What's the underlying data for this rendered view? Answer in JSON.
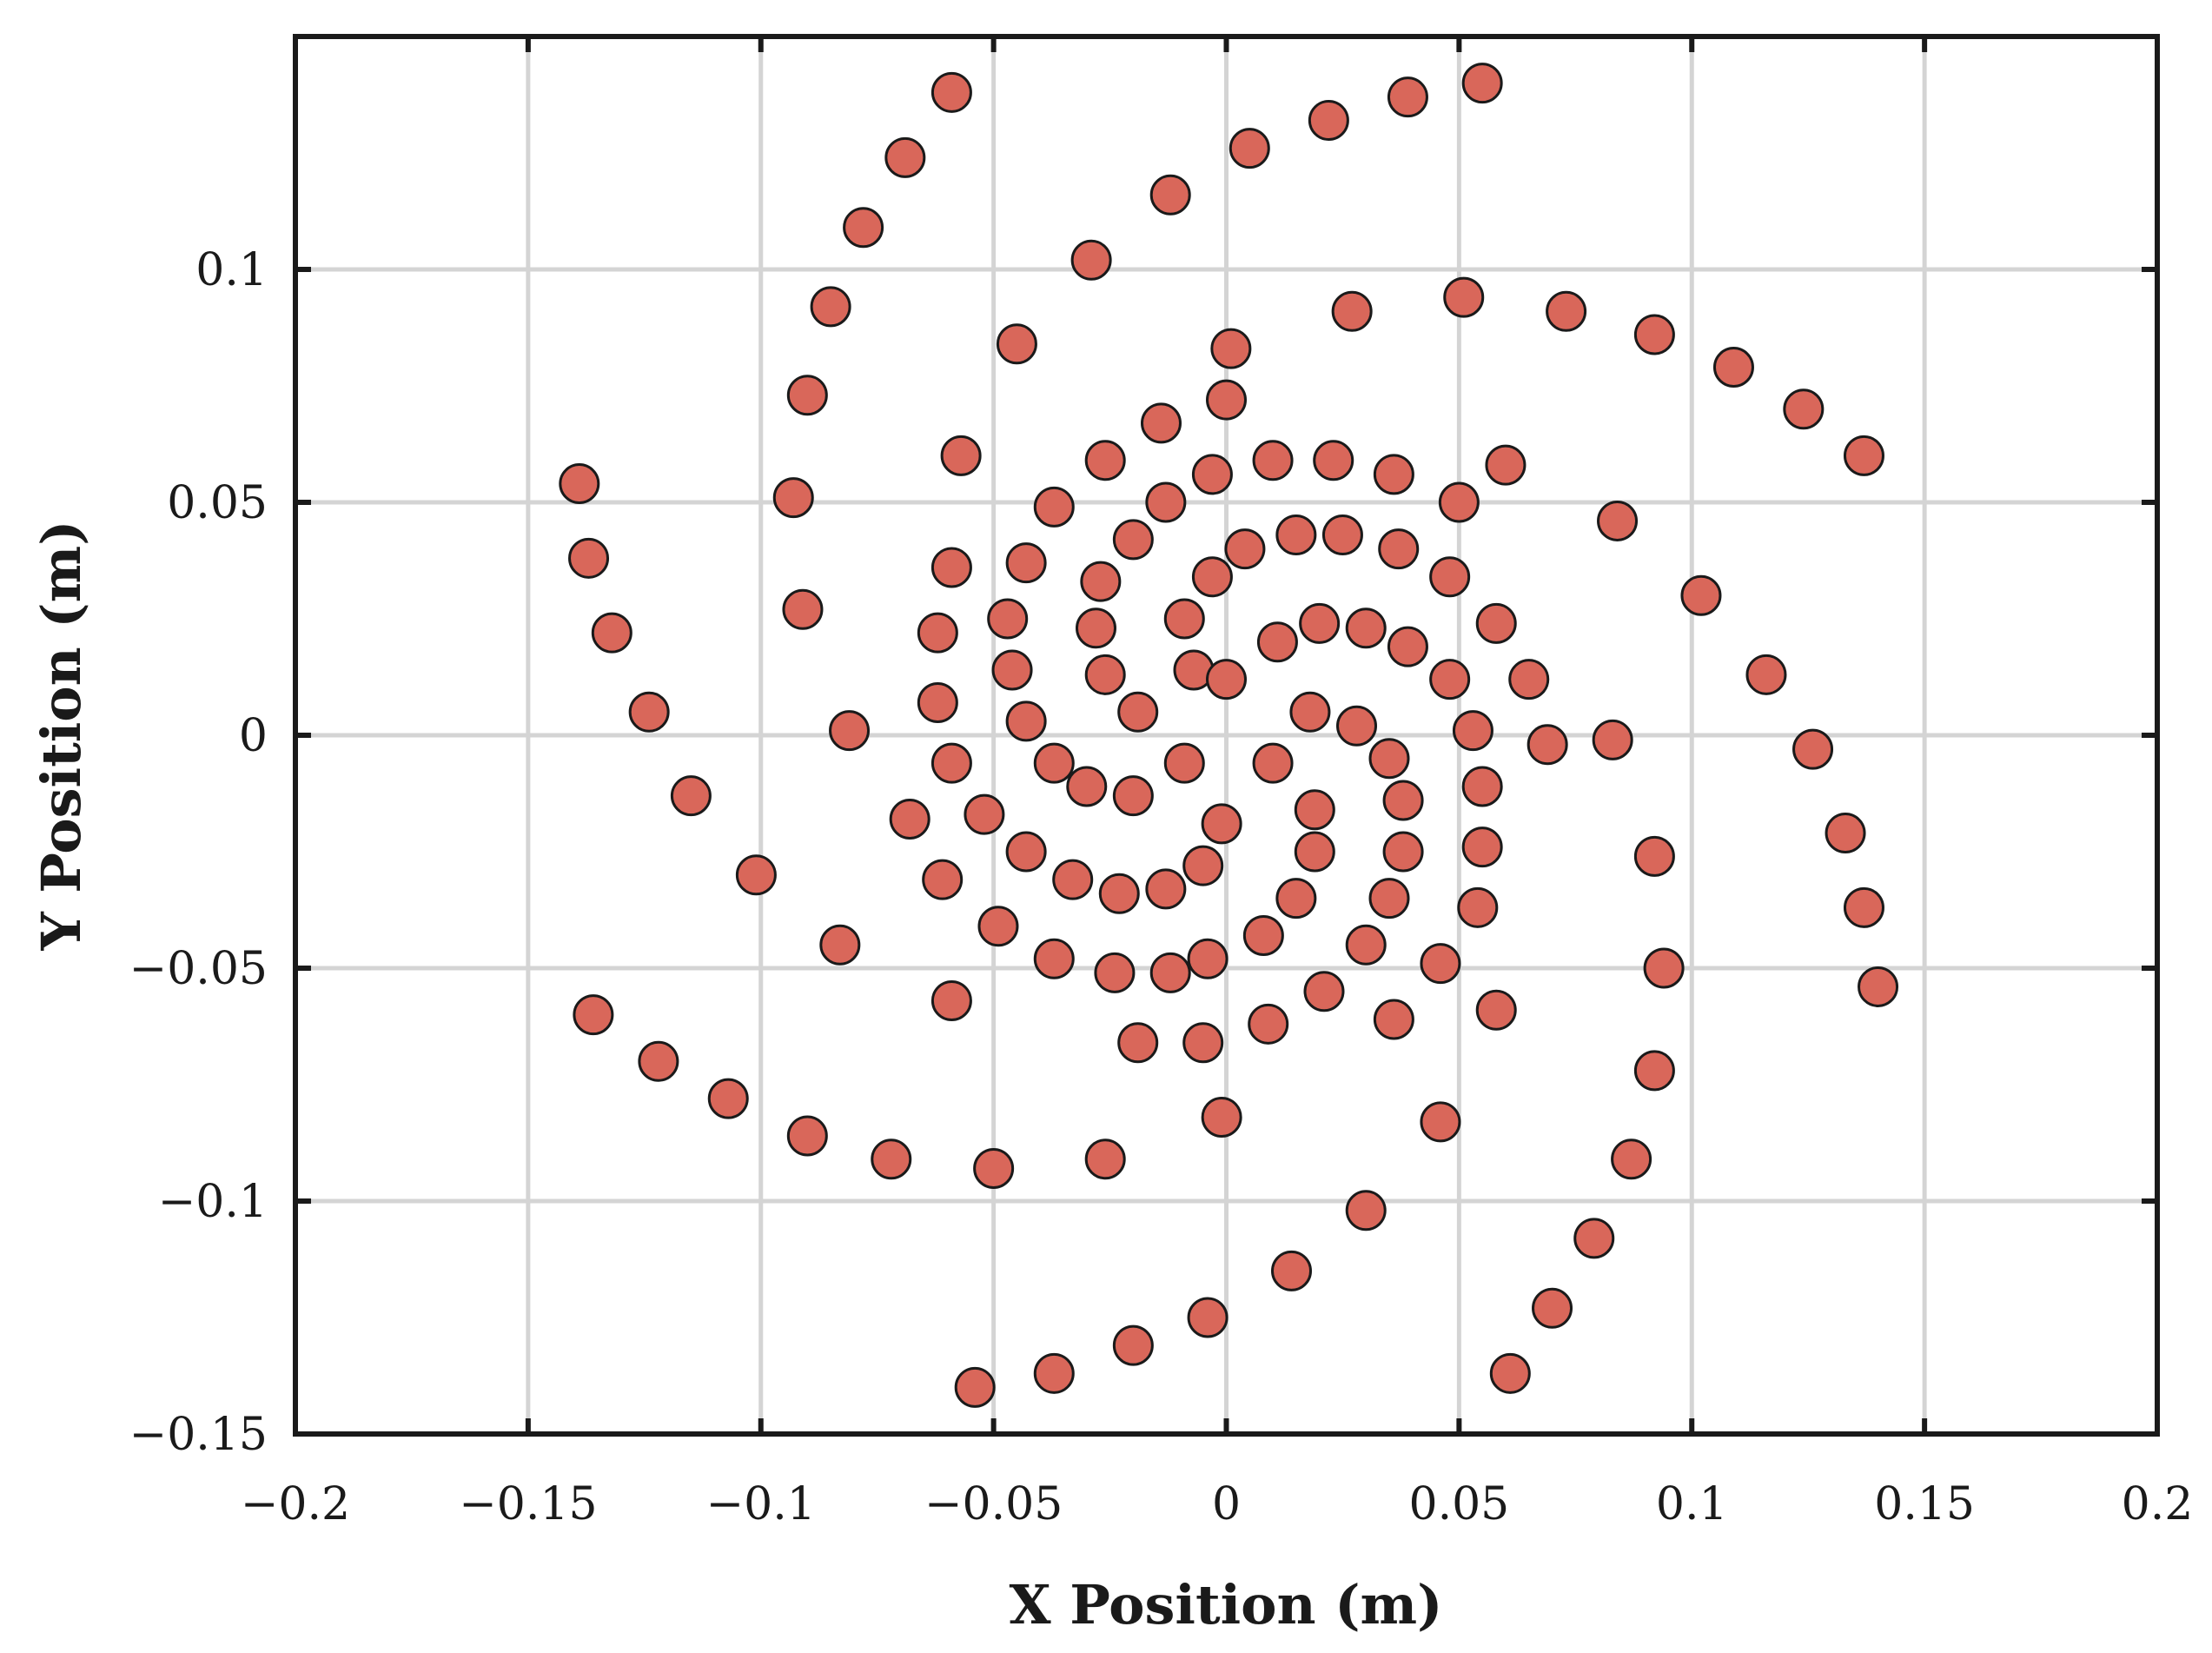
{
  "chart_data": {
    "type": "scatter",
    "title": "",
    "xlabel": "X Position (m)",
    "ylabel": "Y Position (m)",
    "xlim": [
      -0.2,
      0.2
    ],
    "ylim": [
      -0.15,
      0.15
    ],
    "xticks": [
      -0.2,
      -0.15,
      -0.1,
      -0.05,
      0,
      0.05,
      0.1,
      0.15,
      0.2
    ],
    "yticks": [
      -0.15,
      -0.1,
      -0.05,
      0,
      0.05,
      0.1
    ],
    "xtick_labels": [
      "−0.2",
      "−0.15",
      "−0.1",
      "−0.05",
      "0",
      "0.05",
      "0.1",
      "0.15",
      "0.2"
    ],
    "ytick_labels": [
      "−0.15",
      "−0.1",
      "−0.05",
      "0",
      "0.05",
      "0.1"
    ],
    "grid": true,
    "marker_color": "#d9675a",
    "marker_edge_color": "#1a1a1a",
    "points": [
      [
        -0.059,
        0.138
      ],
      [
        -0.069,
        0.124
      ],
      [
        -0.078,
        0.109
      ],
      [
        -0.085,
        0.092
      ],
      [
        -0.09,
        0.073
      ],
      [
        -0.093,
        0.051
      ],
      [
        -0.091,
        0.027
      ],
      [
        -0.081,
        0.001
      ],
      [
        -0.139,
        0.054
      ],
      [
        -0.137,
        0.038
      ],
      [
        -0.132,
        0.022
      ],
      [
        -0.124,
        0.005
      ],
      [
        -0.115,
        -0.013
      ],
      [
        -0.101,
        -0.03
      ],
      [
        -0.083,
        -0.045
      ],
      [
        -0.136,
        -0.06
      ],
      [
        -0.122,
        -0.07
      ],
      [
        -0.107,
        -0.078
      ],
      [
        -0.09,
        -0.086
      ],
      [
        -0.072,
        -0.091
      ],
      [
        -0.05,
        -0.093
      ],
      [
        -0.026,
        -0.091
      ],
      [
        -0.001,
        -0.082
      ],
      [
        0.03,
        -0.102
      ],
      [
        0.046,
        -0.083
      ],
      [
        -0.054,
        -0.14
      ],
      [
        -0.037,
        -0.137
      ],
      [
        -0.02,
        -0.131
      ],
      [
        -0.004,
        -0.125
      ],
      [
        0.014,
        -0.115
      ],
      [
        0.061,
        -0.137
      ],
      [
        0.07,
        -0.123
      ],
      [
        0.079,
        -0.108
      ],
      [
        0.087,
        -0.091
      ],
      [
        0.092,
        -0.072
      ],
      [
        0.094,
        -0.05
      ],
      [
        0.092,
        -0.026
      ],
      [
        0.14,
        -0.054
      ],
      [
        0.137,
        -0.037
      ],
      [
        0.133,
        -0.021
      ],
      [
        0.126,
        -0.003
      ],
      [
        0.116,
        0.013
      ],
      [
        0.102,
        0.03
      ],
      [
        0.084,
        0.046
      ],
      [
        0.137,
        0.06
      ],
      [
        0.124,
        0.07
      ],
      [
        0.109,
        0.079
      ],
      [
        0.092,
        0.086
      ],
      [
        0.073,
        0.091
      ],
      [
        0.051,
        0.094
      ],
      [
        0.027,
        0.091
      ],
      [
        0.001,
        0.083
      ],
      [
        0.055,
        0.14
      ],
      [
        0.039,
        0.137
      ],
      [
        0.022,
        0.132
      ],
      [
        0.005,
        0.126
      ],
      [
        -0.012,
        0.116
      ],
      [
        -0.029,
        0.102
      ],
      [
        -0.045,
        0.084
      ],
      [
        0.083,
        -0.001
      ],
      [
        0.069,
        -0.002
      ],
      [
        0.058,
        -0.059
      ],
      [
        0.058,
        0.024
      ],
      [
        0.065,
        0.012
      ],
      [
        0.06,
        0.058
      ],
      [
        0.05,
        0.05
      ],
      [
        0.036,
        0.056
      ],
      [
        -0.062,
        0.007
      ],
      [
        -0.059,
        -0.006
      ],
      [
        -0.061,
        -0.031
      ],
      [
        -0.068,
        -0.018
      ],
      [
        -0.052,
        -0.017
      ],
      [
        -0.059,
        -0.057
      ],
      [
        -0.049,
        -0.041
      ],
      [
        -0.037,
        -0.048
      ],
      [
        -0.024,
        -0.051
      ],
      [
        -0.012,
        -0.051
      ],
      [
        -0.019,
        -0.066
      ],
      [
        -0.005,
        -0.066
      ],
      [
        0.009,
        -0.062
      ],
      [
        0.021,
        -0.055
      ],
      [
        0.036,
        -0.061
      ],
      [
        -0.057,
        0.06
      ],
      [
        -0.037,
        0.049
      ],
      [
        -0.026,
        0.059
      ],
      [
        -0.013,
        0.05
      ],
      [
        -0.014,
        0.067
      ],
      [
        0.0,
        0.072
      ],
      [
        -0.003,
        0.056
      ],
      [
        0.01,
        0.059
      ],
      [
        0.023,
        0.059
      ],
      [
        -0.062,
        0.022
      ],
      [
        -0.059,
        0.036
      ],
      [
        -0.047,
        0.025
      ],
      [
        -0.043,
        0.037
      ],
      [
        -0.046,
        0.014
      ],
      [
        -0.043,
        0.003
      ],
      [
        -0.037,
        -0.006
      ],
      [
        -0.043,
        -0.025
      ],
      [
        -0.033,
        -0.031
      ],
      [
        -0.027,
        0.033
      ],
      [
        -0.02,
        0.042
      ],
      [
        -0.028,
        0.023
      ],
      [
        -0.026,
        0.013
      ],
      [
        -0.019,
        0.005
      ],
      [
        -0.03,
        -0.011
      ],
      [
        -0.02,
        -0.013
      ],
      [
        -0.009,
        -0.006
      ],
      [
        -0.023,
        -0.034
      ],
      [
        -0.013,
        -0.033
      ],
      [
        -0.005,
        -0.028
      ],
      [
        -0.001,
        -0.019
      ],
      [
        -0.004,
        -0.048
      ],
      [
        0.008,
        -0.043
      ],
      [
        -0.009,
        0.025
      ],
      [
        -0.007,
        0.014
      ],
      [
        -0.003,
        0.034
      ],
      [
        0.004,
        0.04
      ],
      [
        0.0,
        0.012
      ],
      [
        0.011,
        0.02
      ],
      [
        0.02,
        0.024
      ],
      [
        0.015,
        0.043
      ],
      [
        0.025,
        0.043
      ],
      [
        0.03,
        0.023
      ],
      [
        0.037,
        0.04
      ],
      [
        0.048,
        0.034
      ],
      [
        0.039,
        0.019
      ],
      [
        0.048,
        0.012
      ],
      [
        0.053,
        0.001
      ],
      [
        0.055,
        -0.011
      ],
      [
        0.055,
        -0.024
      ],
      [
        0.054,
        -0.037
      ],
      [
        0.046,
        -0.049
      ],
      [
        0.01,
        -0.006
      ],
      [
        0.018,
        0.005
      ],
      [
        0.028,
        0.002
      ],
      [
        0.035,
        -0.005
      ],
      [
        0.038,
        -0.014
      ],
      [
        0.038,
        -0.025
      ],
      [
        0.035,
        -0.035
      ],
      [
        0.03,
        -0.045
      ],
      [
        0.019,
        -0.016
      ],
      [
        0.019,
        -0.025
      ],
      [
        0.015,
        -0.035
      ]
    ]
  }
}
